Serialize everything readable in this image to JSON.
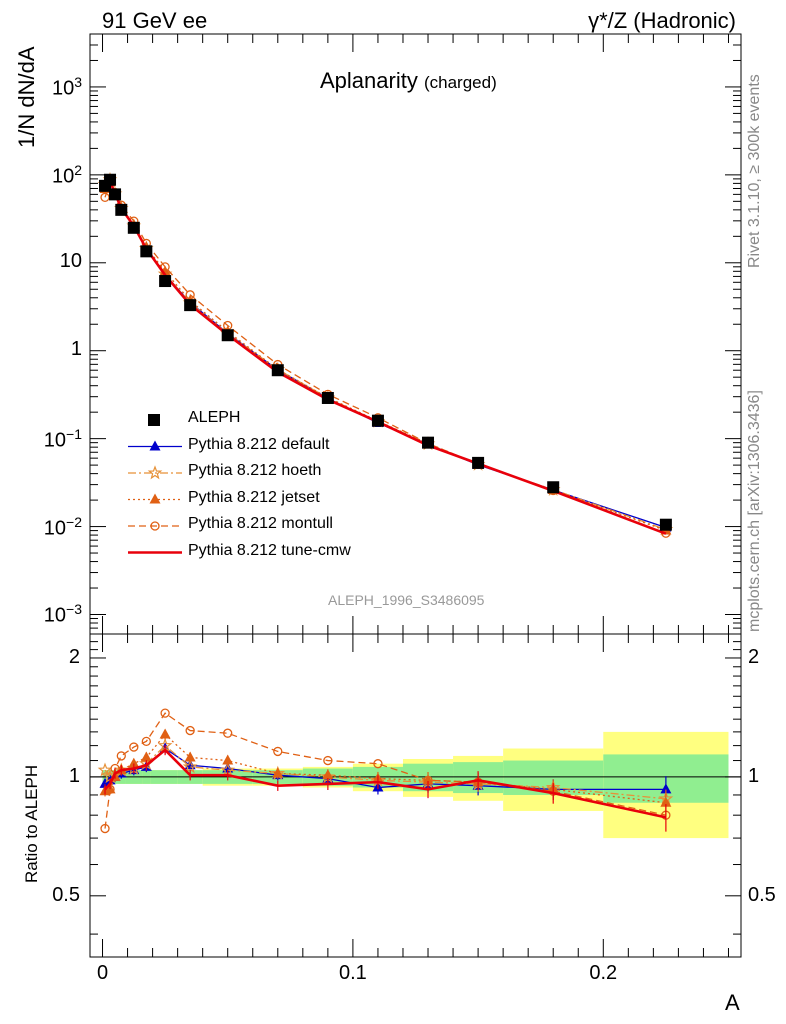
{
  "header": {
    "energy_label": "91 GeV ee",
    "process_label": "γ*/Z (Hadronic)"
  },
  "title": {
    "main": "Aplanarity",
    "sub": "(charged)"
  },
  "side_text": {
    "rivet": "Rivet 3.1.10, ≥ 300k events",
    "mcplots": "mcplots.cern.ch [arXiv:1306.3436]"
  },
  "analysis_id": "ALEPH_1996_S3486095",
  "chart_data": {
    "type": "line",
    "xlabel": "A",
    "ylabel_main": "1/N dN/dA",
    "ylabel_ratio": "Ratio to ALEPH",
    "xlim": [
      -0.005,
      0.255
    ],
    "ylim_main": [
      0.0006,
      4000
    ],
    "ylim_ratio": [
      0.35,
      2.3
    ],
    "y_scale_main": "log",
    "y_scale_ratio": "log",
    "x_ticks": [
      0,
      0.1,
      0.2
    ],
    "x_tick_labels": [
      "0",
      "0.1",
      "0.2"
    ],
    "ratio_ticks": [
      0.5,
      1,
      2
    ],
    "ratio_tick_labels": [
      "0.5",
      "1",
      "2"
    ],
    "main_ticks": [
      0.001,
      0.01,
      0.1,
      1,
      10,
      100,
      1000
    ],
    "main_tick_labels": [
      {
        "base": "10",
        "exp": "−3"
      },
      {
        "base": "10",
        "exp": "−2"
      },
      {
        "base": "10",
        "exp": "−1"
      },
      {
        "base": "1",
        "exp": ""
      },
      {
        "base": "10",
        "exp": ""
      },
      {
        "base": "10",
        "exp": "2"
      },
      {
        "base": "10",
        "exp": "3"
      }
    ],
    "legend_position": "middle-left",
    "x": [
      0.001,
      0.003,
      0.005,
      0.0075,
      0.0125,
      0.0175,
      0.025,
      0.035,
      0.05,
      0.07,
      0.09,
      0.11,
      0.13,
      0.15,
      0.18,
      0.225
    ],
    "x_bins": [
      [
        0,
        0.002
      ],
      [
        0.002,
        0.004
      ],
      [
        0.004,
        0.006
      ],
      [
        0.006,
        0.009
      ],
      [
        0.009,
        0.016
      ],
      [
        0.016,
        0.019
      ],
      [
        0.019,
        0.03
      ],
      [
        0.03,
        0.04
      ],
      [
        0.04,
        0.06
      ],
      [
        0.06,
        0.08
      ],
      [
        0.08,
        0.1
      ],
      [
        0.1,
        0.12
      ],
      [
        0.12,
        0.14
      ],
      [
        0.14,
        0.16
      ],
      [
        0.16,
        0.2
      ],
      [
        0.2,
        0.25
      ]
    ],
    "data": {
      "name": "ALEPH",
      "color": "#000000",
      "values": [
        75,
        88,
        60,
        40,
        25,
        13.5,
        6.2,
        3.3,
        1.5,
        0.6,
        0.29,
        0.16,
        0.09,
        0.053,
        0.028,
        0.0105
      ],
      "band_inner": [
        0.04,
        0.04,
        0.04,
        0.04,
        0.04,
        0.04,
        0.04,
        0.04,
        0.04,
        0.04,
        0.05,
        0.06,
        0.08,
        0.09,
        0.1,
        0.14
      ],
      "band_outer": [
        0.04,
        0.04,
        0.04,
        0.04,
        0.04,
        0.04,
        0.04,
        0.04,
        0.05,
        0.05,
        0.06,
        0.08,
        0.11,
        0.13,
        0.18,
        0.3
      ]
    },
    "series": [
      {
        "name": "Pythia 8.212 default",
        "color": "#0000cc",
        "style": "solid",
        "marker": "triangle",
        "ratio": [
          0.96,
          0.98,
          1.0,
          1.02,
          1.04,
          1.06,
          1.18,
          1.07,
          1.05,
          1.01,
          0.99,
          0.94,
          0.96,
          0.95,
          0.93,
          0.93
        ]
      },
      {
        "name": "Pythia 8.212 hoeth",
        "color": "#e69138",
        "style": "dashdot",
        "marker": "star",
        "ratio": [
          1.04,
          1.0,
          1.01,
          1.04,
          1.05,
          1.08,
          1.2,
          1.06,
          1.04,
          1.02,
          1.0,
          0.98,
          0.97,
          0.96,
          0.94,
          0.88
        ]
      },
      {
        "name": "Pythia 8.212 jetset",
        "color": "#e06014",
        "style": "dotted",
        "marker": "triangle",
        "ratio": [
          0.92,
          0.93,
          1.0,
          1.04,
          1.08,
          1.12,
          1.28,
          1.12,
          1.1,
          1.02,
          1.01,
          0.99,
          0.98,
          0.97,
          0.93,
          0.86
        ]
      },
      {
        "name": "Pythia 8.212 montull",
        "color": "#e06014",
        "style": "dashed",
        "marker": "circle",
        "ratio": [
          0.74,
          0.93,
          1.05,
          1.13,
          1.19,
          1.23,
          1.45,
          1.31,
          1.29,
          1.16,
          1.1,
          1.08,
          0.98,
          0.97,
          0.92,
          0.8
        ]
      },
      {
        "name": "Pythia 8.212 tune-cmw",
        "color": "#e8000b",
        "style": "solid-thick",
        "marker": "none",
        "ratio": [
          0.93,
          0.96,
          1.02,
          1.04,
          1.05,
          1.07,
          1.17,
          1.01,
          1.01,
          0.95,
          0.96,
          0.97,
          0.93,
          0.98,
          0.91,
          0.79
        ]
      }
    ]
  }
}
